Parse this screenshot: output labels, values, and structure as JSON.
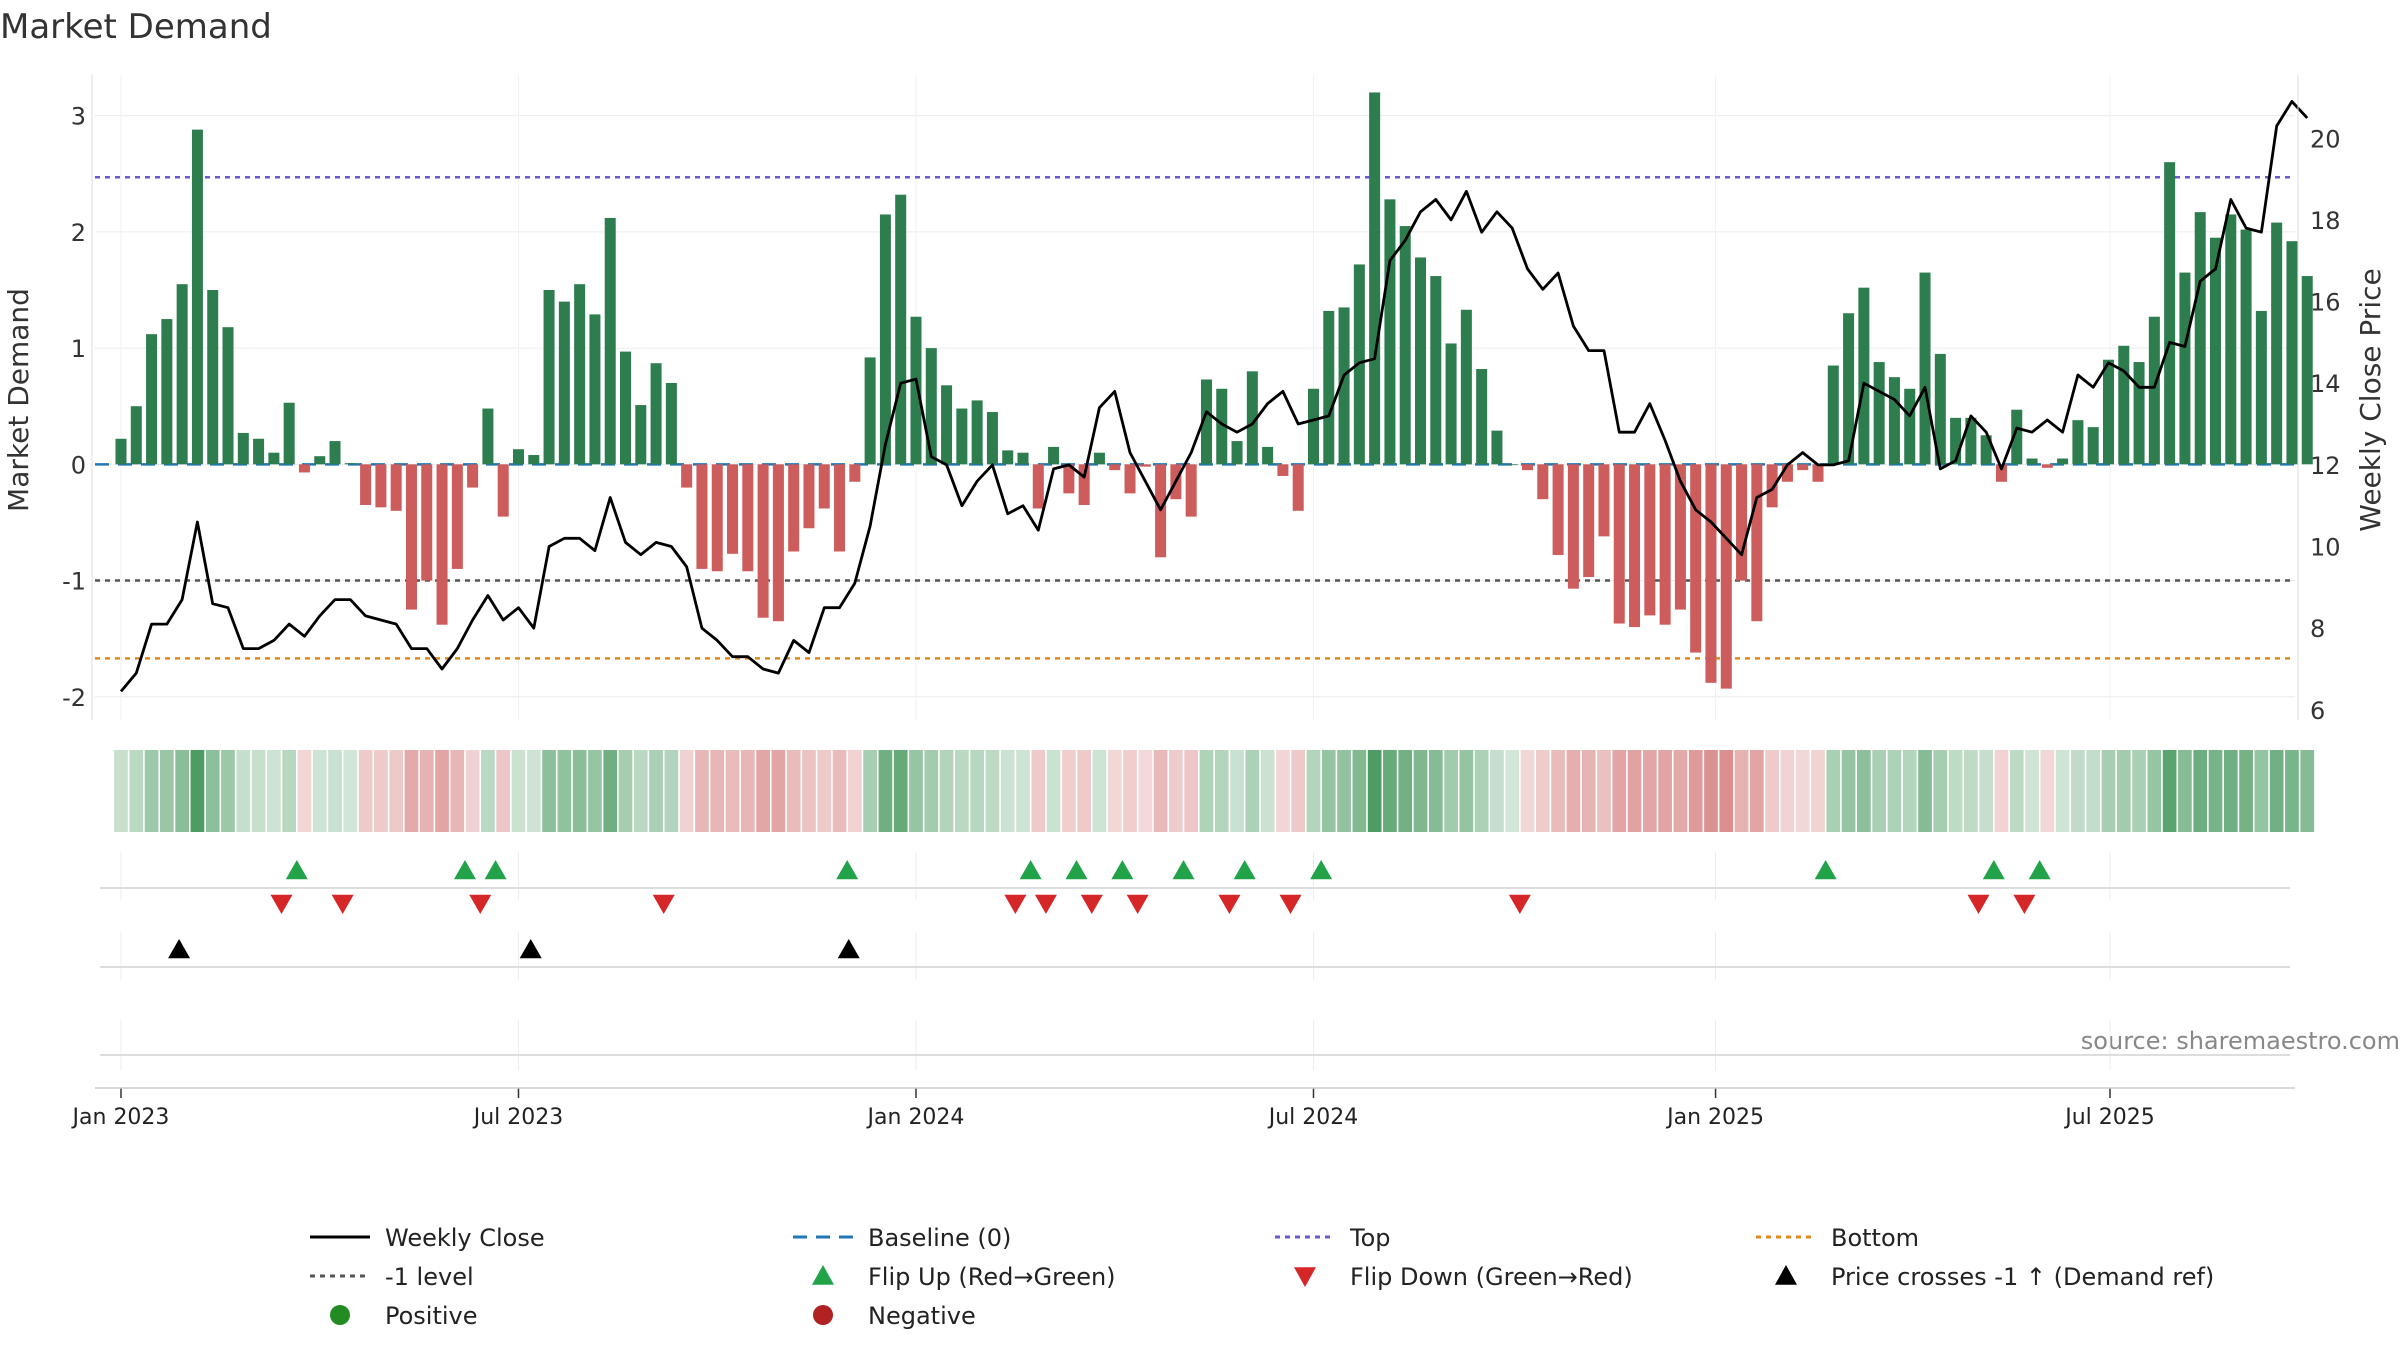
{
  "title": "Market Demand",
  "source": "source: sharemaestro.com",
  "colors": {
    "bar_pos": "#2e7d4f",
    "bar_neg": "#cd5c5c",
    "price": "#000000",
    "baseline": "#1f77b4",
    "top": "#6a5acd",
    "minus1": "#555555",
    "bottom": "#e08a1e",
    "flip_up": "#22a34a",
    "flip_down": "#d62728",
    "cross": "#000000",
    "positive": "#228b22",
    "negative": "#b22222"
  },
  "legend": {
    "weekly_close": "Weekly Close",
    "baseline": "Baseline (0)",
    "top": "Top",
    "bottom": "Bottom",
    "minus1": "-1 level",
    "flip_up": "Flip Up (Red→Green)",
    "flip_down": "Flip Down (Green→Red)",
    "cross": "Price crosses -1 ↑ (Demand ref)",
    "positive": "Positive",
    "negative": "Negative"
  },
  "chart_data": {
    "type": "bar",
    "title": "Market Demand",
    "ylabel": "Market Demand",
    "y2label": "Weekly Close Price",
    "ylim": [
      -2.2,
      3.35
    ],
    "y2lim": [
      5.75,
      21.55
    ],
    "yticks": [
      -2,
      -1,
      0,
      1,
      2,
      3
    ],
    "y2ticks": [
      6,
      8,
      10,
      12,
      14,
      16,
      18,
      20
    ],
    "xlim": [
      -1.7,
      142.2
    ],
    "xticks": [
      {
        "label": "Jan 2023",
        "week": 0
      },
      {
        "label": "Jul 2023",
        "week": 26
      },
      {
        "label": "Jan 2024",
        "week": 52
      },
      {
        "label": "Jul 2024",
        "week": 78
      },
      {
        "label": "Jan 2025",
        "week": 104.3
      },
      {
        "label": "Jul 2025",
        "week": 130.1
      }
    ],
    "reference_lines": {
      "baseline": 0,
      "top": 2.47,
      "minus1": -1,
      "bottom": -1.67
    },
    "demand": [
      0.22,
      0.5,
      1.12,
      1.25,
      1.55,
      2.88,
      1.5,
      1.18,
      0.27,
      0.22,
      0.1,
      0.53,
      -0.07,
      0.07,
      0.2,
      0.01,
      -0.35,
      -0.37,
      -0.4,
      -1.25,
      -1.0,
      -1.38,
      -0.9,
      -0.2,
      0.48,
      -0.45,
      0.13,
      0.08,
      1.5,
      1.4,
      1.55,
      1.29,
      2.12,
      0.97,
      0.51,
      0.87,
      0.7,
      -0.2,
      -0.9,
      -0.92,
      -0.77,
      -0.92,
      -1.32,
      -1.35,
      -0.75,
      -0.55,
      -0.38,
      -0.75,
      -0.15,
      0.92,
      2.15,
      2.32,
      1.27,
      1.0,
      0.68,
      0.48,
      0.55,
      0.45,
      0.12,
      0.1,
      -0.38,
      0.15,
      -0.25,
      -0.35,
      0.1,
      -0.05,
      -0.25,
      -0.02,
      -0.8,
      -0.3,
      -0.45,
      0.73,
      0.65,
      0.2,
      0.8,
      0.15,
      -0.1,
      -0.4,
      0.65,
      1.32,
      1.35,
      1.72,
      3.2,
      2.28,
      2.05,
      1.78,
      1.62,
      1.04,
      1.33,
      0.82,
      0.29,
      0.0,
      -0.05,
      -0.3,
      -0.78,
      -1.07,
      -0.97,
      -0.62,
      -1.37,
      -1.4,
      -1.3,
      -1.38,
      -1.25,
      -1.62,
      -1.88,
      -1.93,
      -1.0,
      -1.35,
      -0.37,
      -0.15,
      -0.05,
      -0.15,
      0.85,
      1.3,
      1.52,
      0.88,
      0.75,
      0.65,
      1.65,
      0.95,
      0.4,
      0.4,
      0.25,
      -0.15,
      0.47,
      0.05,
      -0.03,
      0.05,
      0.38,
      0.32,
      0.9,
      1.02,
      0.88,
      1.27,
      2.6,
      1.65,
      2.17,
      1.95,
      2.15,
      2.02,
      1.32,
      2.08,
      1.92,
      1.62
    ],
    "price": [
      6.45,
      6.9,
      8.1,
      8.1,
      8.7,
      10.6,
      8.6,
      8.5,
      7.5,
      7.5,
      7.7,
      8.1,
      7.8,
      8.3,
      8.7,
      8.7,
      8.3,
      8.2,
      8.1,
      7.5,
      7.5,
      7.0,
      7.5,
      8.2,
      8.8,
      8.2,
      8.5,
      8.0,
      10.0,
      10.2,
      10.2,
      9.9,
      11.2,
      10.1,
      9.8,
      10.1,
      10.0,
      9.5,
      8.0,
      7.7,
      7.3,
      7.3,
      7.0,
      6.9,
      7.7,
      7.4,
      8.5,
      8.5,
      9.1,
      10.5,
      12.5,
      14.0,
      14.1,
      12.2,
      12.0,
      11.0,
      11.6,
      12.0,
      10.8,
      11.0,
      10.4,
      11.9,
      12.0,
      11.7,
      13.4,
      13.8,
      12.3,
      11.6,
      10.9,
      11.6,
      12.3,
      13.3,
      13.0,
      12.8,
      13.0,
      13.5,
      13.8,
      13.0,
      13.1,
      13.2,
      14.2,
      14.5,
      14.6,
      17.0,
      17.5,
      18.2,
      18.5,
      18.0,
      18.7,
      17.7,
      18.2,
      17.8,
      16.8,
      16.3,
      16.7,
      15.4,
      14.8,
      14.8,
      12.8,
      12.8,
      13.5,
      12.6,
      11.6,
      10.9,
      10.6,
      10.2,
      9.8,
      11.2,
      11.4,
      12.0,
      12.3,
      12.0,
      12.0,
      12.1,
      14.0,
      13.8,
      13.6,
      13.2,
      13.9,
      11.9,
      12.1,
      13.2,
      12.8,
      11.9,
      12.9,
      12.8,
      13.1,
      12.8,
      14.2,
      13.9,
      14.5,
      14.3,
      13.9,
      13.9,
      15.0,
      14.9,
      16.5,
      16.8,
      18.5,
      17.8,
      17.7,
      20.3,
      20.9,
      20.5
    ],
    "flip_up_weeks": [
      11.5,
      22.5,
      24.5,
      47.5,
      59.5,
      62.5,
      65.5,
      69.5,
      73.5,
      78.5,
      111.5,
      122.5,
      125.5
    ],
    "flip_down_weeks": [
      10.5,
      14.5,
      23.5,
      35.5,
      58.5,
      60.5,
      63.5,
      66.5,
      72.5,
      76.5,
      91.5,
      121.5,
      124.5
    ],
    "price_cross_weeks": [
      3.8,
      26.8,
      47.6
    ]
  }
}
